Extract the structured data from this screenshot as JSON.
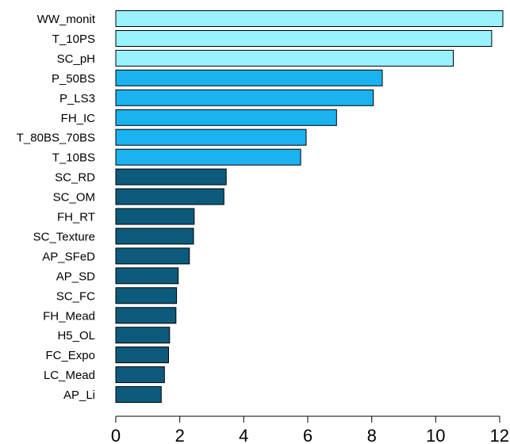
{
  "chart_data": {
    "type": "bar",
    "orientation": "horizontal",
    "categories": [
      "WW_monit",
      "T_10PS",
      "SC_pH",
      "P_50BS",
      "P_LS3",
      "FH_IC",
      "T_80BS_70BS",
      "T_10BS",
      "SC_RD",
      "SC_OM",
      "FH_RT",
      "SC_Texture",
      "AP_SFeD",
      "AP_SD",
      "SC_FC",
      "FH_Mead",
      "H5_OL",
      "FC_Expo",
      "LC_Mead",
      "AP_Li"
    ],
    "values": [
      12.1,
      11.75,
      10.55,
      8.33,
      8.05,
      6.9,
      5.95,
      5.78,
      3.45,
      3.38,
      2.45,
      2.43,
      2.3,
      1.95,
      1.9,
      1.88,
      1.68,
      1.65,
      1.52,
      1.42
    ],
    "group": [
      1,
      1,
      1,
      2,
      2,
      2,
      2,
      2,
      3,
      3,
      3,
      3,
      3,
      3,
      3,
      3,
      3,
      3,
      3,
      3
    ],
    "group_colors": {
      "1": "#99f2ff",
      "2": "#1ab2f0",
      "3": "#0d5a7c"
    },
    "xticks": [
      "0",
      "2",
      "4",
      "6",
      "8",
      "10",
      "12"
    ],
    "xlim": [
      0,
      12
    ],
    "title": "",
    "xlabel": "",
    "ylabel": "",
    "grid": false
  }
}
